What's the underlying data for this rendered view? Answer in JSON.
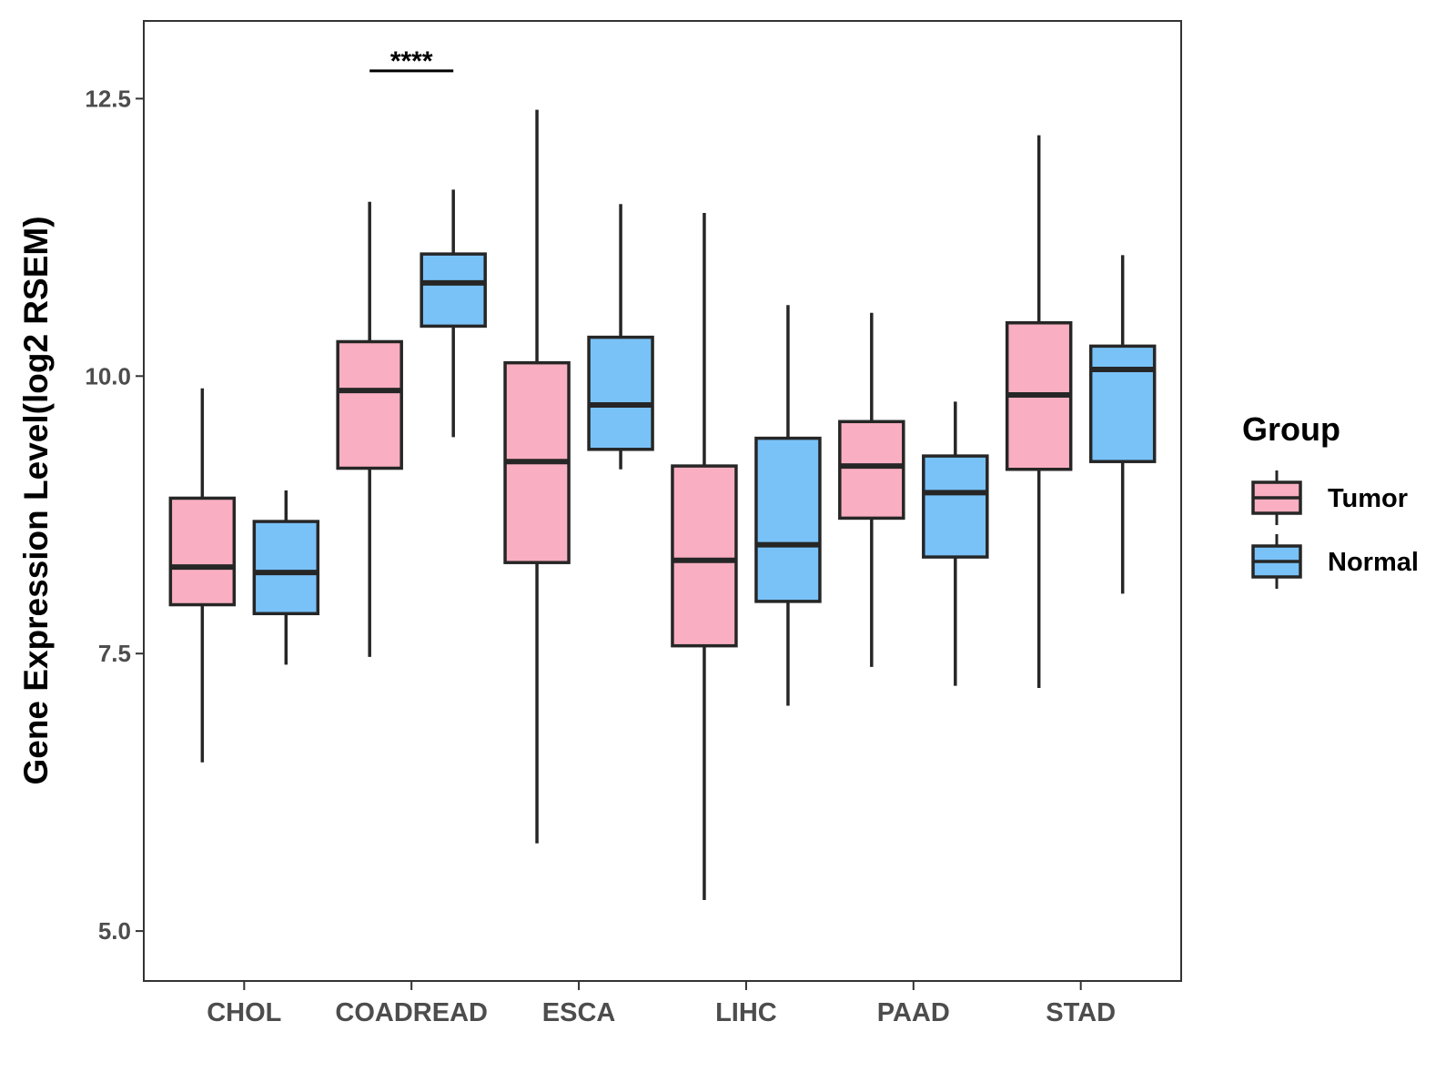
{
  "chart_data": {
    "type": "boxplot",
    "ylabel": "Gene Expression Level(log2 RSEM)",
    "xlabel": "",
    "ylim": [
      4.55,
      13.2
    ],
    "yticks": [
      5.0,
      7.5,
      10.0,
      12.5
    ],
    "ytick_labels": [
      "5.0",
      "7.5",
      "10.0",
      "12.5"
    ],
    "categories": [
      "CHOL",
      "COADREAD",
      "ESCA",
      "LIHC",
      "PAAD",
      "STAD"
    ],
    "legend": {
      "title": "Group",
      "position": "right",
      "entries": [
        "Tumor",
        "Normal"
      ]
    },
    "series": [
      {
        "name": "Tumor",
        "color": "#F9AFC1",
        "boxes": [
          {
            "whisker_low": 6.52,
            "q1": 7.94,
            "median": 8.28,
            "q3": 8.9,
            "whisker_high": 9.89
          },
          {
            "whisker_low": 7.47,
            "q1": 9.17,
            "median": 9.87,
            "q3": 10.31,
            "whisker_high": 11.57
          },
          {
            "whisker_low": 5.79,
            "q1": 8.32,
            "median": 9.23,
            "q3": 10.12,
            "whisker_high": 12.4
          },
          {
            "whisker_low": 5.28,
            "q1": 7.57,
            "median": 8.34,
            "q3": 9.19,
            "whisker_high": 11.47
          },
          {
            "whisker_low": 7.38,
            "q1": 8.72,
            "median": 9.19,
            "q3": 9.59,
            "whisker_high": 10.57
          },
          {
            "whisker_low": 7.19,
            "q1": 9.16,
            "median": 9.83,
            "q3": 10.48,
            "whisker_high": 12.17
          }
        ]
      },
      {
        "name": "Normal",
        "color": "#79C2F8",
        "boxes": [
          {
            "whisker_low": 7.4,
            "q1": 7.86,
            "median": 8.23,
            "q3": 8.69,
            "whisker_high": 8.97
          },
          {
            "whisker_low": 9.45,
            "q1": 10.45,
            "median": 10.84,
            "q3": 11.1,
            "whisker_high": 11.68
          },
          {
            "whisker_low": 9.16,
            "q1": 9.34,
            "median": 9.74,
            "q3": 10.35,
            "whisker_high": 11.55
          },
          {
            "whisker_low": 7.03,
            "q1": 7.97,
            "median": 8.48,
            "q3": 9.44,
            "whisker_high": 10.64
          },
          {
            "whisker_low": 7.21,
            "q1": 8.37,
            "median": 8.95,
            "q3": 9.28,
            "whisker_high": 9.77
          },
          {
            "whisker_low": 8.04,
            "q1": 9.23,
            "median": 10.06,
            "q3": 10.27,
            "whisker_high": 11.09
          }
        ]
      }
    ],
    "annotations": [
      {
        "category": "COADREAD",
        "text": "****",
        "y": 12.75
      }
    ]
  }
}
